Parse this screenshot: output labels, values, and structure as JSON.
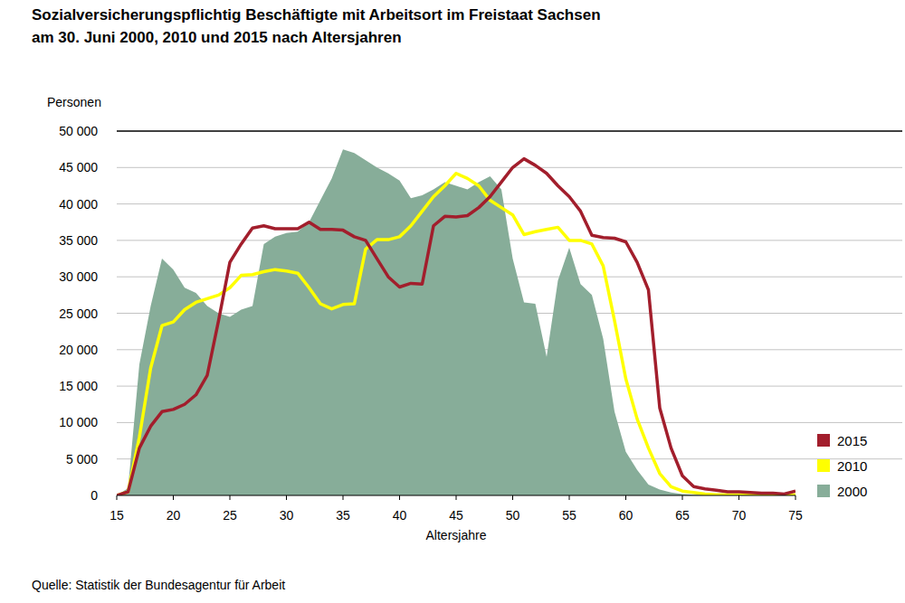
{
  "chart_data": {
    "type": "line",
    "title": "Sozialversicherungspflichtig Beschäftigte mit Arbeitsort im Freistaat Sachsen",
    "subtitle": "am 30. Juni 2000, 2010 und 2015 nach Altersjahren",
    "x_label": "Altersjahre",
    "y_label": "Personen",
    "source": "Quelle: Statistik der Bundesagentur für Arbeit",
    "x": [
      15,
      16,
      17,
      18,
      19,
      20,
      21,
      22,
      23,
      24,
      25,
      26,
      27,
      28,
      29,
      30,
      31,
      32,
      33,
      34,
      35,
      36,
      37,
      38,
      39,
      40,
      41,
      42,
      43,
      44,
      45,
      46,
      47,
      48,
      49,
      50,
      51,
      52,
      53,
      54,
      55,
      56,
      57,
      58,
      59,
      60,
      61,
      62,
      63,
      64,
      65,
      66,
      67,
      68,
      69,
      70,
      71,
      72,
      73,
      74,
      75
    ],
    "series": [
      {
        "name": "2015",
        "color": "#a21e2c",
        "type": "line",
        "values": [
          0,
          500,
          6500,
          9500,
          11500,
          11800,
          12500,
          13800,
          16500,
          24000,
          32000,
          34500,
          36700,
          37000,
          36600,
          36600,
          36600,
          37500,
          36500,
          36500,
          36400,
          35500,
          35000,
          32500,
          30000,
          28600,
          29100,
          29000,
          37000,
          38300,
          38200,
          38400,
          39500,
          41000,
          43000,
          45000,
          46200,
          45300,
          44200,
          42500,
          41000,
          39000,
          35700,
          35400,
          35300,
          34800,
          32000,
          28200,
          12000,
          6500,
          2700,
          1200,
          900,
          700,
          500,
          500,
          400,
          300,
          300,
          200,
          600
        ]
      },
      {
        "name": "2010",
        "color": "#ffff00",
        "type": "line",
        "values": [
          0,
          500,
          8000,
          17500,
          23300,
          23800,
          25500,
          26500,
          27000,
          27500,
          28500,
          30200,
          30300,
          30700,
          31000,
          30800,
          30500,
          28500,
          26300,
          25600,
          26200,
          26300,
          33800,
          35100,
          35100,
          35500,
          37000,
          39000,
          41000,
          42500,
          44200,
          43500,
          42500,
          40500,
          39500,
          38500,
          35800,
          36200,
          36500,
          36800,
          35000,
          35000,
          34500,
          31500,
          24000,
          16000,
          10500,
          6500,
          3000,
          1200,
          600,
          400,
          200,
          100,
          100,
          80,
          50,
          50,
          30,
          20,
          100
        ]
      },
      {
        "name": "2000",
        "color": "#87ad99",
        "type": "area",
        "values": [
          0,
          1000,
          18000,
          26000,
          32500,
          31000,
          28500,
          27800,
          26000,
          25000,
          24500,
          25500,
          26000,
          34500,
          35500,
          36000,
          36200,
          37500,
          40500,
          43500,
          47500,
          47000,
          46000,
          45000,
          44200,
          43200,
          40800,
          41200,
          42000,
          43000,
          42500,
          42000,
          43000,
          43800,
          42000,
          32500,
          26500,
          26300,
          19000,
          29500,
          34000,
          29000,
          27500,
          21500,
          11500,
          6000,
          3500,
          1500,
          800,
          400,
          200,
          100,
          80,
          60,
          50,
          40,
          30,
          20,
          10,
          0,
          0
        ]
      }
    ],
    "xlim": [
      15,
      75
    ],
    "xticks": [
      15,
      20,
      25,
      30,
      35,
      40,
      45,
      50,
      55,
      60,
      65,
      70,
      75
    ],
    "ylim": [
      0,
      50000
    ],
    "yticks": [
      0,
      {
        "value": 5000,
        "label": "5 000"
      },
      {
        "value": 10000,
        "label": "10 000"
      },
      {
        "value": 15000,
        "label": "15 000"
      },
      {
        "value": 20000,
        "label": "20 000"
      },
      {
        "value": 25000,
        "label": "25 000"
      },
      {
        "value": 30000,
        "label": "30 000"
      },
      {
        "value": 35000,
        "label": "35 000"
      },
      {
        "value": 40000,
        "label": "40 000"
      },
      {
        "value": 45000,
        "label": "45 000"
      },
      {
        "value": 50000,
        "label": "50 000"
      }
    ],
    "grid": true,
    "legend": "bottom-right"
  }
}
